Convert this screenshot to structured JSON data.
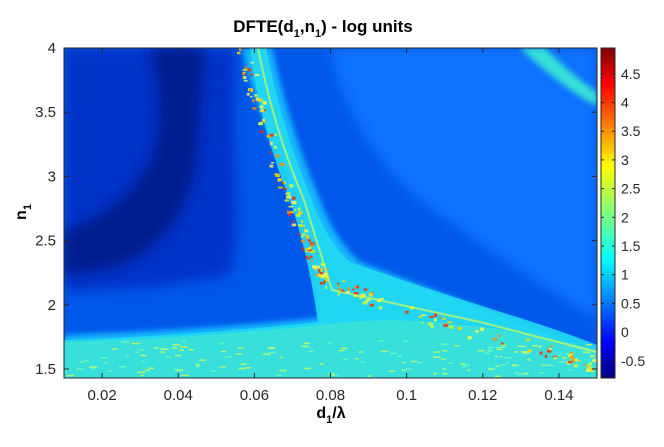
{
  "chart_data": {
    "type": "heatmap",
    "title": {
      "main": "DFTE(d",
      "sub1": "1",
      "mid": ",n",
      "sub2": "1",
      "end": ") - log units"
    },
    "xlabel": {
      "main": "d",
      "sub": "1",
      "end": "/λ"
    },
    "ylabel": {
      "main": "n",
      "sub": "1"
    },
    "xlim": [
      0.01,
      0.15
    ],
    "ylim": [
      1.43,
      4.0
    ],
    "xticks": [
      0.02,
      0.04,
      0.06,
      0.08,
      0.1,
      0.12,
      0.14
    ],
    "xtick_labels": [
      "0.02",
      "0.04",
      "0.06",
      "0.08",
      "0.1",
      "0.12",
      "0.14"
    ],
    "yticks": [
      1.5,
      2,
      2.5,
      3,
      3.5,
      4
    ],
    "ytick_labels": [
      "1.5",
      "2",
      "2.5",
      "3",
      "3.5",
      "4"
    ],
    "colorbar": {
      "range": [
        -0.8,
        4.95
      ],
      "ticks": [
        -0.5,
        0,
        0.5,
        1,
        1.5,
        2,
        2.5,
        3,
        3.5,
        4,
        4.5
      ],
      "tick_labels": [
        "-0.5",
        "0",
        "0.5",
        "1",
        "1.5",
        "2",
        "2.5",
        "3",
        "3.5",
        "4",
        "4.5"
      ],
      "colormap": "jet"
    },
    "features": {
      "resonance_band": [
        [
          0.056,
          4.0
        ],
        [
          0.06,
          3.6
        ],
        [
          0.066,
          3.1
        ],
        [
          0.071,
          2.7
        ],
        [
          0.074,
          2.4
        ],
        [
          0.078,
          2.2
        ],
        [
          0.09,
          2.05
        ],
        [
          0.11,
          1.85
        ],
        [
          0.14,
          1.6
        ],
        [
          0.15,
          1.55
        ]
      ],
      "minimum_valley": [
        [
          0.036,
          4.0
        ],
        [
          0.038,
          3.5
        ],
        [
          0.034,
          3.0
        ],
        [
          0.028,
          2.5
        ],
        [
          0.015,
          2.3
        ]
      ],
      "secondary_band": [
        [
          0.128,
          4.0
        ],
        [
          0.15,
          3.65
        ]
      ]
    }
  }
}
